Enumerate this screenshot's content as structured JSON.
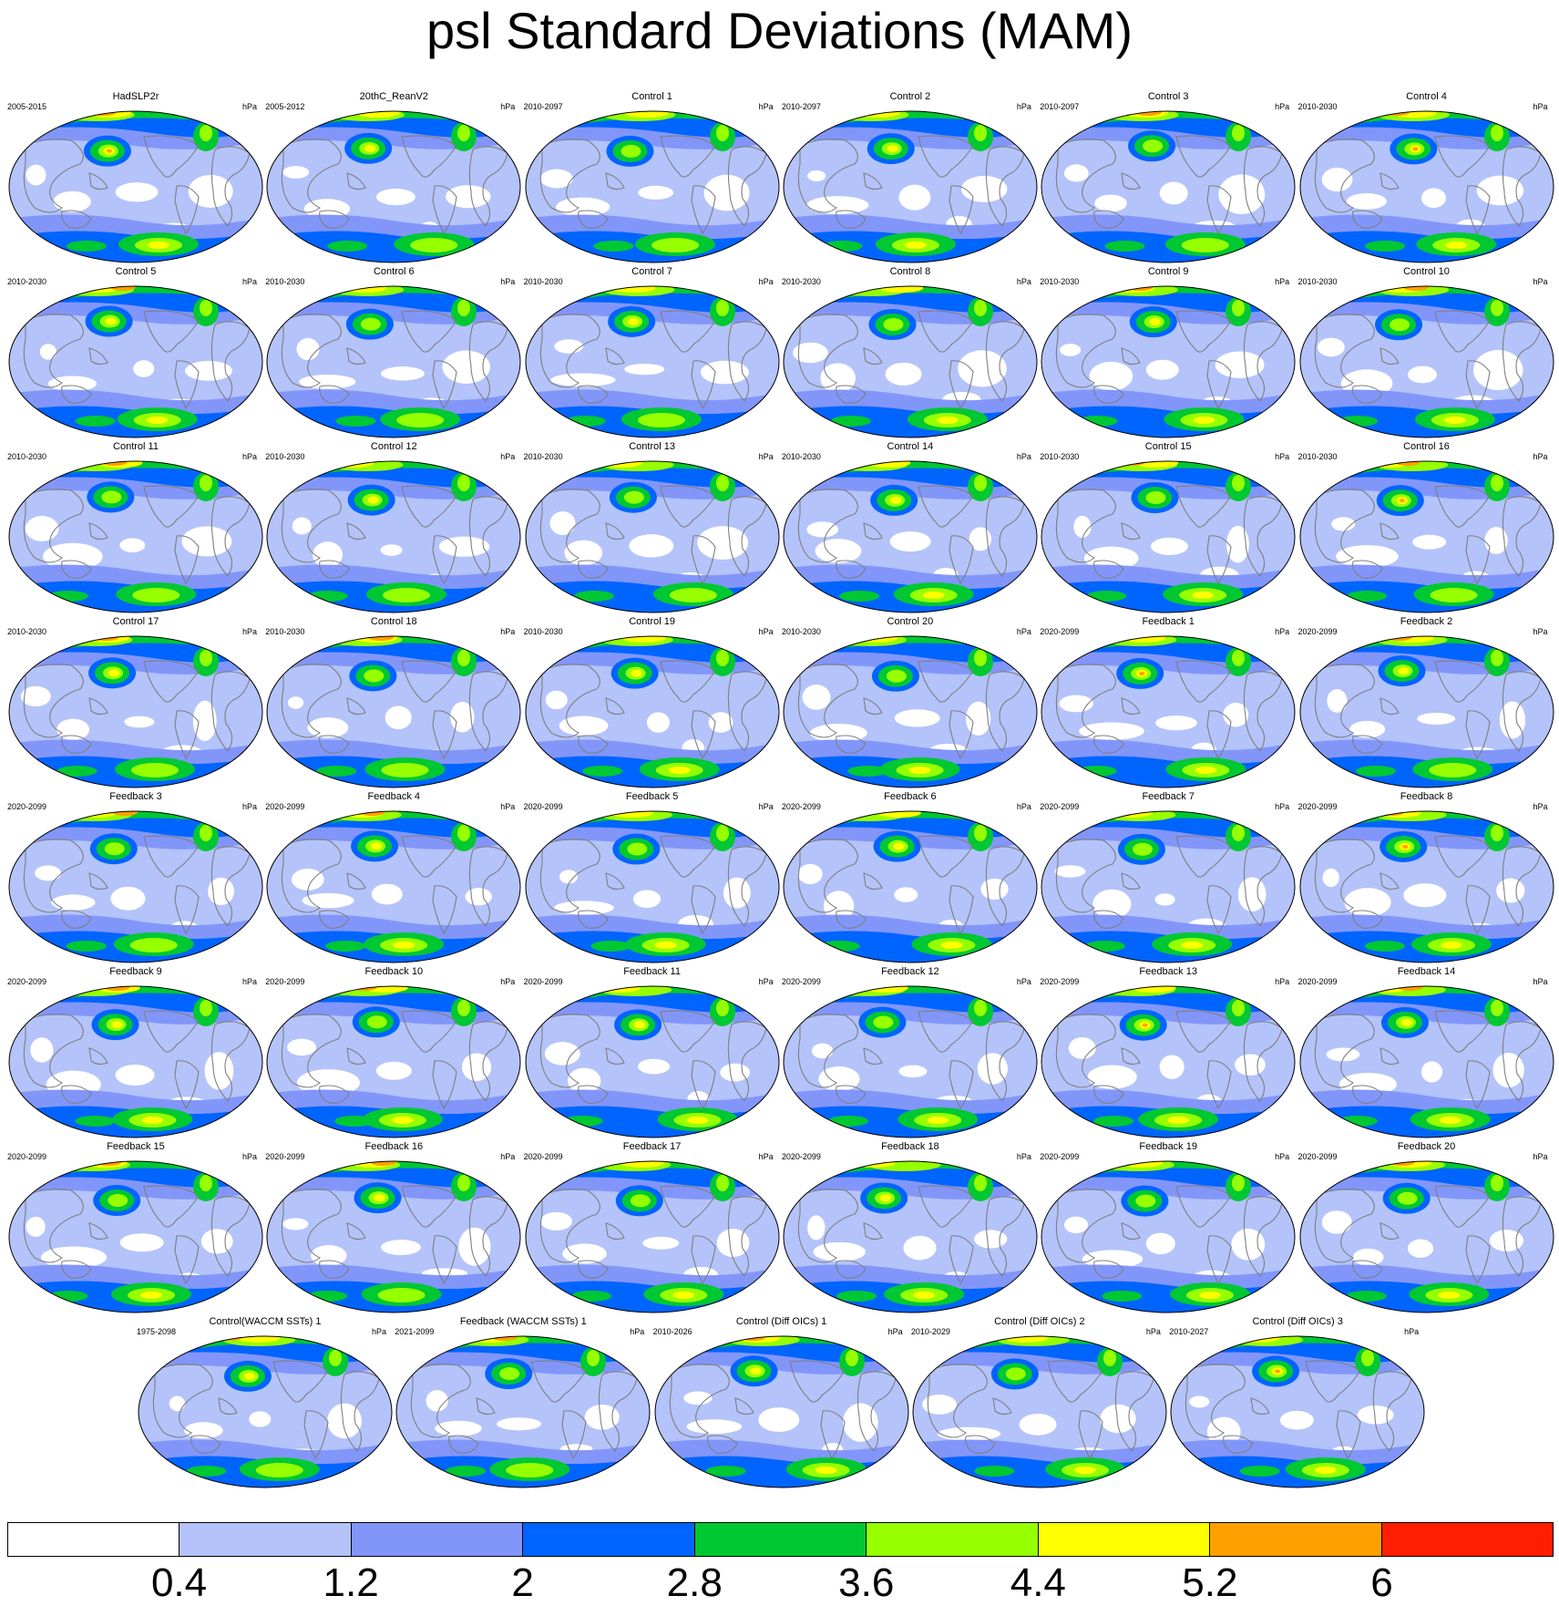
{
  "title": "psl Standard Deviations (MAM)",
  "colors": {
    "levels": [
      "#ffffff",
      "#b4c3fa",
      "#8296fa",
      "#0064ff",
      "#00c832",
      "#96ff00",
      "#ffff00",
      "#ffa000",
      "#ff1e00"
    ],
    "coast": "#7f7f7f",
    "outline": "#000000"
  },
  "colorbar": {
    "ticks": [
      "0.4",
      "1.2",
      "2",
      "2.8",
      "3.6",
      "4.4",
      "5.2",
      "6"
    ]
  },
  "panels": [
    {
      "title": "HadSLP2r",
      "years": "2005-2015",
      "units": "hPa"
    },
    {
      "title": "20thC_ReanV2",
      "years": "2005-2012",
      "units": "hPa"
    },
    {
      "title": "Control 1",
      "years": "2010-2097",
      "units": "hPa"
    },
    {
      "title": "Control 2",
      "years": "2010-2097",
      "units": "hPa"
    },
    {
      "title": "Control 3",
      "years": "2010-2097",
      "units": "hPa"
    },
    {
      "title": "Control 4",
      "years": "2010-2030",
      "units": "hPa"
    },
    {
      "title": "Control 5",
      "years": "2010-2030",
      "units": "hPa"
    },
    {
      "title": "Control 6",
      "years": "2010-2030",
      "units": "hPa"
    },
    {
      "title": "Control 7",
      "years": "2010-2030",
      "units": "hPa"
    },
    {
      "title": "Control 8",
      "years": "2010-2030",
      "units": "hPa"
    },
    {
      "title": "Control 9",
      "years": "2010-2030",
      "units": "hPa"
    },
    {
      "title": "Control 10",
      "years": "2010-2030",
      "units": "hPa"
    },
    {
      "title": "Control 11",
      "years": "2010-2030",
      "units": "hPa"
    },
    {
      "title": "Control 12",
      "years": "2010-2030",
      "units": "hPa"
    },
    {
      "title": "Control 13",
      "years": "2010-2030",
      "units": "hPa"
    },
    {
      "title": "Control 14",
      "years": "2010-2030",
      "units": "hPa"
    },
    {
      "title": "Control 15",
      "years": "2010-2030",
      "units": "hPa"
    },
    {
      "title": "Control 16",
      "years": "2010-2030",
      "units": "hPa"
    },
    {
      "title": "Control 17",
      "years": "2010-2030",
      "units": "hPa"
    },
    {
      "title": "Control 18",
      "years": "2010-2030",
      "units": "hPa"
    },
    {
      "title": "Control 19",
      "years": "2010-2030",
      "units": "hPa"
    },
    {
      "title": "Control 20",
      "years": "2010-2030",
      "units": "hPa"
    },
    {
      "title": "Feedback 1",
      "years": "2020-2099",
      "units": "hPa"
    },
    {
      "title": "Feedback 2",
      "years": "2020-2099",
      "units": "hPa"
    },
    {
      "title": "Feedback 3",
      "years": "2020-2099",
      "units": "hPa"
    },
    {
      "title": "Feedback 4",
      "years": "2020-2099",
      "units": "hPa"
    },
    {
      "title": "Feedback 5",
      "years": "2020-2099",
      "units": "hPa"
    },
    {
      "title": "Feedback 6",
      "years": "2020-2099",
      "units": "hPa"
    },
    {
      "title": "Feedback 7",
      "years": "2020-2099",
      "units": "hPa"
    },
    {
      "title": "Feedback 8",
      "years": "2020-2099",
      "units": "hPa"
    },
    {
      "title": "Feedback 9",
      "years": "2020-2099",
      "units": "hPa"
    },
    {
      "title": "Feedback 10",
      "years": "2020-2099",
      "units": "hPa"
    },
    {
      "title": "Feedback 11",
      "years": "2020-2099",
      "units": "hPa"
    },
    {
      "title": "Feedback 12",
      "years": "2020-2099",
      "units": "hPa"
    },
    {
      "title": "Feedback 13",
      "years": "2020-2099",
      "units": "hPa"
    },
    {
      "title": "Feedback 14",
      "years": "2020-2099",
      "units": "hPa"
    },
    {
      "title": "Feedback 15",
      "years": "2020-2099",
      "units": "hPa"
    },
    {
      "title": "Feedback 16",
      "years": "2020-2099",
      "units": "hPa"
    },
    {
      "title": "Feedback 17",
      "years": "2020-2099",
      "units": "hPa"
    },
    {
      "title": "Feedback 18",
      "years": "2020-2099",
      "units": "hPa"
    },
    {
      "title": "Feedback 19",
      "years": "2020-2099",
      "units": "hPa"
    },
    {
      "title": "Feedback 20",
      "years": "2020-2099",
      "units": "hPa"
    },
    {
      "title": "Control(WACCM SSTs) 1",
      "years": "1975-2098",
      "units": "hPa"
    },
    {
      "title": "Feedback (WACCM SSTs) 1",
      "years": "2021-2099",
      "units": "hPa"
    },
    {
      "title": "Control (Diff OICs) 1",
      "years": "2010-2026",
      "units": "hPa"
    },
    {
      "title": "Control (Diff OICs) 2",
      "years": "2010-2029",
      "units": "hPa"
    },
    {
      "title": "Control (Diff OICs) 3",
      "years": "2010-2027",
      "units": "hPa"
    }
  ]
}
